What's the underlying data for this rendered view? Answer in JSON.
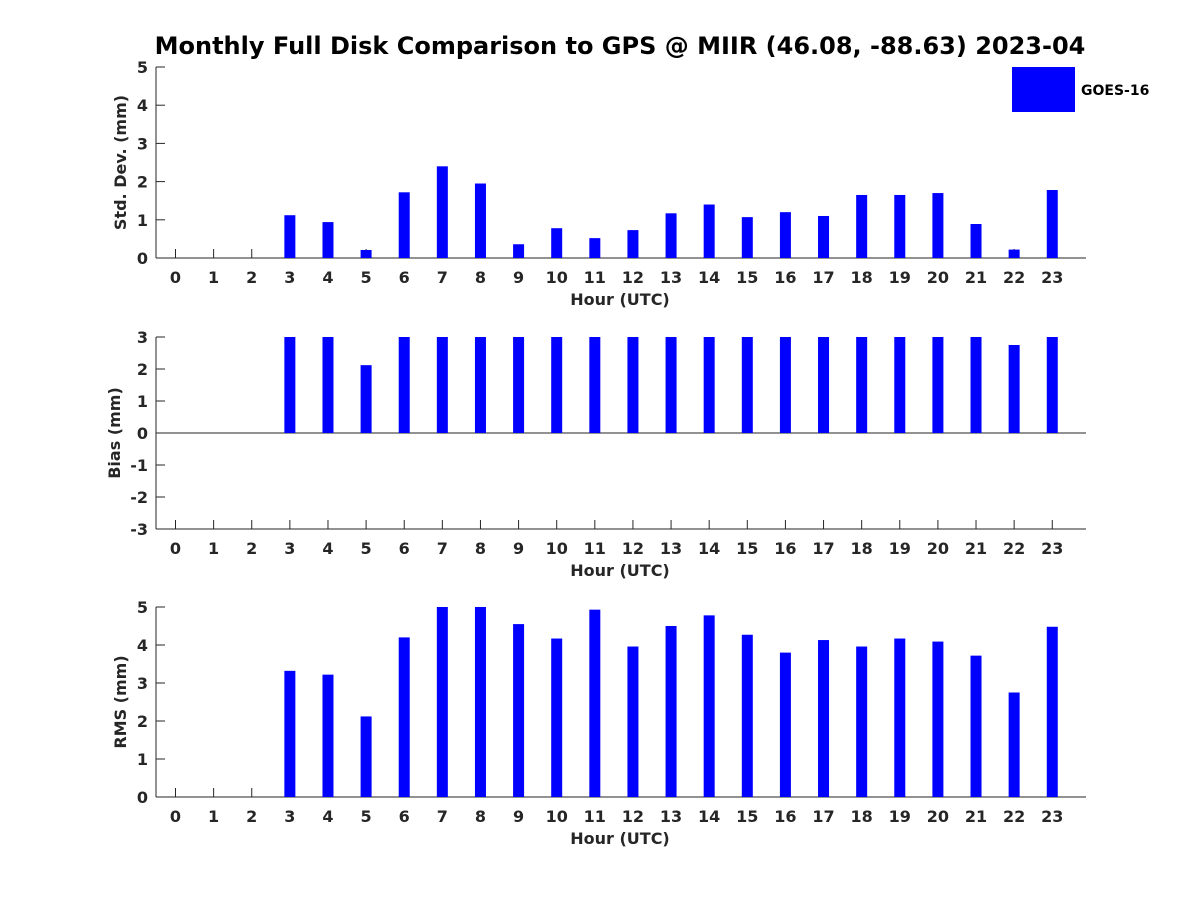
{
  "figure_title": "Monthly Full Disk Comparison to GPS @ MIIR (46.08, -88.63) 2023-04",
  "legend": {
    "label": "GOES-16",
    "color": "#0000ff"
  },
  "chart_data": [
    {
      "type": "bar",
      "xlabel": "Hour (UTC)",
      "ylabel": "Std. Dev. (mm)",
      "ylim": [
        0,
        5
      ],
      "yticks": [
        "0",
        "1",
        "2",
        "3",
        "4",
        "5"
      ],
      "categories": [
        "0",
        "1",
        "2",
        "3",
        "4",
        "5",
        "6",
        "7",
        "8",
        "9",
        "10",
        "11",
        "12",
        "13",
        "14",
        "15",
        "16",
        "17",
        "18",
        "19",
        "20",
        "21",
        "22",
        "23"
      ],
      "series": [
        {
          "name": "GOES-16",
          "values": [
            null,
            null,
            null,
            1.12,
            0.94,
            0.21,
            1.72,
            2.4,
            1.95,
            0.36,
            0.78,
            0.52,
            0.73,
            1.17,
            1.4,
            1.07,
            1.2,
            1.1,
            1.65,
            1.65,
            1.7,
            0.89,
            0.22,
            1.78
          ]
        }
      ],
      "legend": "top-right"
    },
    {
      "type": "bar",
      "xlabel": "Hour (UTC)",
      "ylabel": "Bias (mm)",
      "ylim": [
        -3,
        3
      ],
      "yticks": [
        "-3",
        "-2",
        "-1",
        "0",
        "1",
        "2",
        "3"
      ],
      "categories": [
        "0",
        "1",
        "2",
        "3",
        "4",
        "5",
        "6",
        "7",
        "8",
        "9",
        "10",
        "11",
        "12",
        "13",
        "14",
        "15",
        "16",
        "17",
        "18",
        "19",
        "20",
        "21",
        "22",
        "23"
      ],
      "series": [
        {
          "name": "GOES-16",
          "values": [
            null,
            null,
            null,
            3.0,
            3.0,
            2.12,
            3.0,
            3.0,
            3.0,
            3.0,
            3.0,
            3.0,
            3.0,
            3.0,
            3.0,
            3.0,
            3.0,
            3.0,
            3.0,
            3.0,
            3.0,
            3.0,
            2.75,
            3.0
          ]
        }
      ]
    },
    {
      "type": "bar",
      "xlabel": "Hour (UTC)",
      "ylabel": "RMS (mm)",
      "ylim": [
        0,
        5
      ],
      "yticks": [
        "0",
        "1",
        "2",
        "3",
        "4",
        "5"
      ],
      "categories": [
        "0",
        "1",
        "2",
        "3",
        "4",
        "5",
        "6",
        "7",
        "8",
        "9",
        "10",
        "11",
        "12",
        "13",
        "14",
        "15",
        "16",
        "17",
        "18",
        "19",
        "20",
        "21",
        "22",
        "23"
      ],
      "series": [
        {
          "name": "GOES-16",
          "values": [
            null,
            null,
            null,
            3.32,
            3.22,
            2.12,
            4.2,
            5.0,
            5.0,
            4.55,
            4.17,
            4.93,
            3.96,
            4.5,
            4.78,
            4.27,
            3.8,
            4.13,
            3.96,
            4.17,
            4.09,
            3.72,
            2.75,
            4.48
          ]
        }
      ]
    }
  ]
}
